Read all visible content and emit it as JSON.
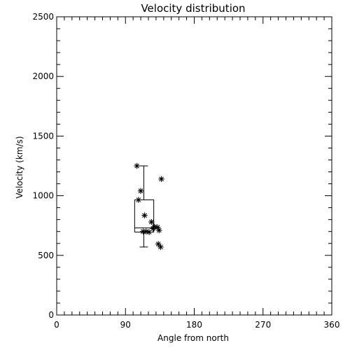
{
  "chart_data": {
    "type": "scatter",
    "title": "Velocity distribution",
    "xlabel": "Angle from north",
    "ylabel": "Velocity (km/s)",
    "xlim": [
      0,
      360
    ],
    "ylim": [
      0,
      2500
    ],
    "xticks": [
      0,
      90,
      180,
      270,
      360
    ],
    "yticks": [
      0,
      500,
      1000,
      1500,
      2000,
      2500
    ],
    "xminor_step": 10,
    "yminor_step": 100,
    "grid": false,
    "marker": "asterisk",
    "points": [
      {
        "x": 105,
        "y": 1250
      },
      {
        "x": 137,
        "y": 1140
      },
      {
        "x": 110,
        "y": 1040
      },
      {
        "x": 107,
        "y": 965
      },
      {
        "x": 115,
        "y": 835
      },
      {
        "x": 124,
        "y": 780
      },
      {
        "x": 128,
        "y": 740
      },
      {
        "x": 132,
        "y": 735
      },
      {
        "x": 126,
        "y": 725
      },
      {
        "x": 134,
        "y": 710
      },
      {
        "x": 113,
        "y": 700
      },
      {
        "x": 117,
        "y": 700
      },
      {
        "x": 121,
        "y": 695
      },
      {
        "x": 133,
        "y": 595
      },
      {
        "x": 136,
        "y": 570
      }
    ],
    "boxplot": {
      "x_left": 102,
      "x_right": 127,
      "q1": 695,
      "median": 730,
      "q3": 965,
      "whisker_low": 570,
      "whisker_high": 1250,
      "whisker_x": 114
    }
  }
}
